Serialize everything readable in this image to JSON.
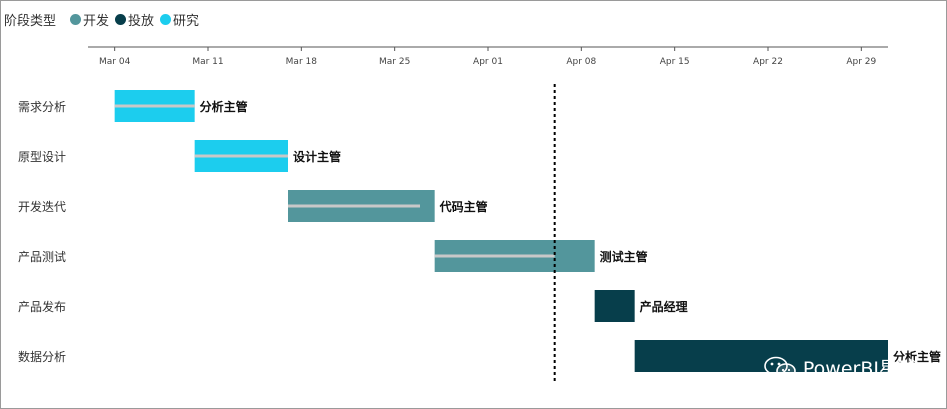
{
  "legend": {
    "title": "阶段类型",
    "items": [
      {
        "label": "开发",
        "color": "#53969c"
      },
      {
        "label": "投放",
        "color": "#073e4b"
      },
      {
        "label": "研究",
        "color": "#1ccdee"
      }
    ]
  },
  "watermark": {
    "text": "PowerBI星球",
    "icon": "wechat-icon"
  },
  "chart_data": {
    "type": "gantt",
    "x_tick_labels": [
      "Mar 04",
      "Mar 11",
      "Mar 18",
      "Mar 25",
      "Apr 01",
      "Apr 08",
      "Apr 15",
      "Apr 22",
      "Apr 29"
    ],
    "x_ticks": [
      "2024-03-04",
      "2024-03-11",
      "2024-03-18",
      "2024-03-25",
      "2024-04-01",
      "2024-04-08",
      "2024-04-15",
      "2024-04-22",
      "2024-04-29"
    ],
    "xlim": [
      "2024-03-02",
      "2024-05-01"
    ],
    "today_line": "2024-04-06",
    "tasks": [
      {
        "name": "需求分析",
        "owner": "分析主管",
        "phase": "研究",
        "start": "2024-03-04",
        "end": "2024-03-10",
        "progress": 1.0
      },
      {
        "name": "原型设计",
        "owner": "设计主管",
        "phase": "研究",
        "start": "2024-03-10",
        "end": "2024-03-17",
        "progress": 1.0
      },
      {
        "name": "开发迭代",
        "owner": "代码主管",
        "phase": "开发",
        "start": "2024-03-17",
        "end": "2024-03-28",
        "progress": 0.9
      },
      {
        "name": "产品测试",
        "owner": "测试主管",
        "phase": "开发",
        "start": "2024-03-28",
        "end": "2024-04-09",
        "progress": 0.75
      },
      {
        "name": "产品发布",
        "owner": "产品经理",
        "phase": "投放",
        "start": "2024-04-09",
        "end": "2024-04-12",
        "progress": 0
      },
      {
        "name": "数据分析",
        "owner": "分析主管",
        "phase": "投放",
        "start": "2024-04-12",
        "end": "2024-05-02",
        "progress": 0
      }
    ],
    "progress_color": "#c8c8c8"
  }
}
